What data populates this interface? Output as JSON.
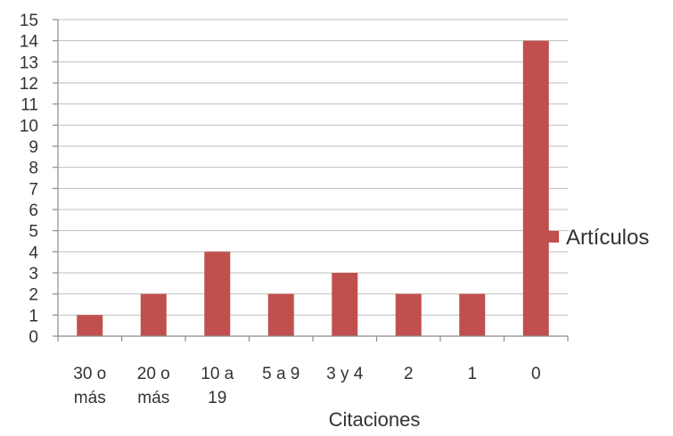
{
  "chart_data": {
    "type": "bar",
    "categories": [
      [
        "30 o",
        "más"
      ],
      [
        "20 o",
        "más"
      ],
      [
        "10 a",
        "19"
      ],
      [
        "5 a 9"
      ],
      [
        "3 y 4"
      ],
      [
        "2"
      ],
      [
        "1"
      ],
      [
        "0"
      ]
    ],
    "series": [
      {
        "name": "Artículos",
        "values": [
          1,
          2,
          4,
          2,
          3,
          2,
          2,
          14
        ],
        "color": "#c0504d"
      }
    ],
    "xlabel": "Citaciones",
    "ylabel": "",
    "ylim": [
      0,
      15
    ],
    "yticks": [
      0,
      1,
      2,
      3,
      4,
      5,
      6,
      7,
      8,
      9,
      10,
      11,
      12,
      13,
      14,
      15
    ],
    "grid": true,
    "legend_position": "right"
  }
}
